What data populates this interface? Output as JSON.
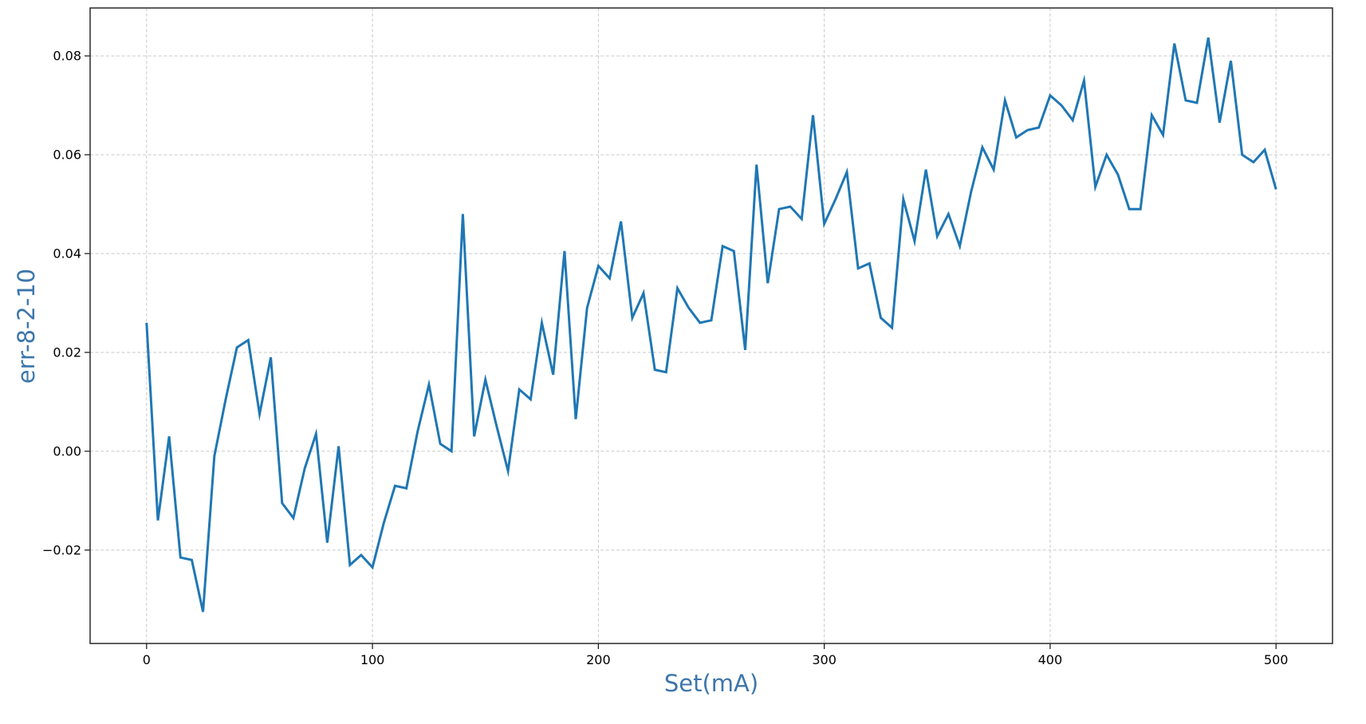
{
  "chart_data": {
    "type": "line",
    "title": "",
    "xlabel": "Set(mA)",
    "ylabel": "err-8-2-10",
    "x": [
      0,
      5,
      10,
      15,
      20,
      25,
      30,
      35,
      40,
      45,
      50,
      55,
      60,
      65,
      70,
      75,
      80,
      85,
      90,
      95,
      100,
      105,
      110,
      115,
      120,
      125,
      130,
      135,
      140,
      145,
      150,
      155,
      160,
      165,
      170,
      175,
      180,
      185,
      190,
      195,
      200,
      205,
      210,
      215,
      220,
      225,
      230,
      235,
      240,
      245,
      250,
      255,
      260,
      265,
      270,
      275,
      280,
      285,
      290,
      295,
      300,
      305,
      310,
      315,
      320,
      325,
      330,
      335,
      340,
      345,
      350,
      355,
      360,
      365,
      370,
      375,
      380,
      385,
      390,
      395,
      400,
      405,
      410,
      415,
      420,
      425,
      430,
      435,
      440,
      445,
      450,
      455,
      460,
      465,
      470,
      475,
      480,
      485,
      490,
      495,
      500
    ],
    "y": [
      0.026,
      -0.014,
      0.003,
      -0.0215,
      -0.022,
      -0.0325,
      -0.001,
      0.0105,
      0.021,
      0.0225,
      0.0075,
      0.019,
      -0.0105,
      -0.0135,
      -0.0035,
      0.0035,
      -0.0185,
      0.001,
      -0.023,
      -0.021,
      -0.0235,
      -0.0145,
      -0.007,
      -0.0075,
      0.004,
      0.0135,
      0.0015,
      0.0,
      0.048,
      0.003,
      0.0145,
      0.005,
      -0.004,
      0.0125,
      0.0105,
      0.026,
      0.0155,
      0.0405,
      0.0065,
      0.029,
      0.0375,
      0.035,
      0.0465,
      0.027,
      0.032,
      0.0165,
      0.016,
      0.033,
      0.029,
      0.026,
      0.0265,
      0.0415,
      0.0405,
      0.0205,
      0.058,
      0.034,
      0.049,
      0.0495,
      0.047,
      0.068,
      0.046,
      0.051,
      0.0565,
      0.037,
      0.038,
      0.027,
      0.025,
      0.051,
      0.0425,
      0.057,
      0.0435,
      0.048,
      0.0415,
      0.0525,
      0.0615,
      0.057,
      0.071,
      0.0635,
      0.065,
      0.0655,
      0.072,
      0.07,
      0.067,
      0.075,
      0.0535,
      0.06,
      0.056,
      0.049,
      0.049,
      0.068,
      0.064,
      0.0825,
      0.071,
      0.0705,
      0.0837,
      0.0665,
      0.079,
      0.06,
      0.0585,
      0.061,
      0.053
    ],
    "xticks": [
      0,
      100,
      200,
      300,
      400,
      500
    ],
    "xtick_labels": [
      "0",
      "100",
      "200",
      "300",
      "400",
      "500"
    ],
    "yticks": [
      -0.02,
      0.0,
      0.02,
      0.04,
      0.06,
      0.08
    ],
    "ytick_labels": [
      "−0.02",
      "0.00",
      "0.02",
      "0.04",
      "0.06",
      "0.08"
    ],
    "xlim": [
      -25,
      525
    ],
    "ylim": [
      -0.0389,
      0.0897
    ],
    "grid": true,
    "grid_style": "dashed",
    "legend": null,
    "line_color": "#1f77b4",
    "line_width": 3,
    "label_color": "#3d76ab",
    "tick_label_color": "#000000",
    "grid_color": "#c9c9c9",
    "spine_color": "#1a1a1a",
    "background_color": "#ffffff"
  }
}
